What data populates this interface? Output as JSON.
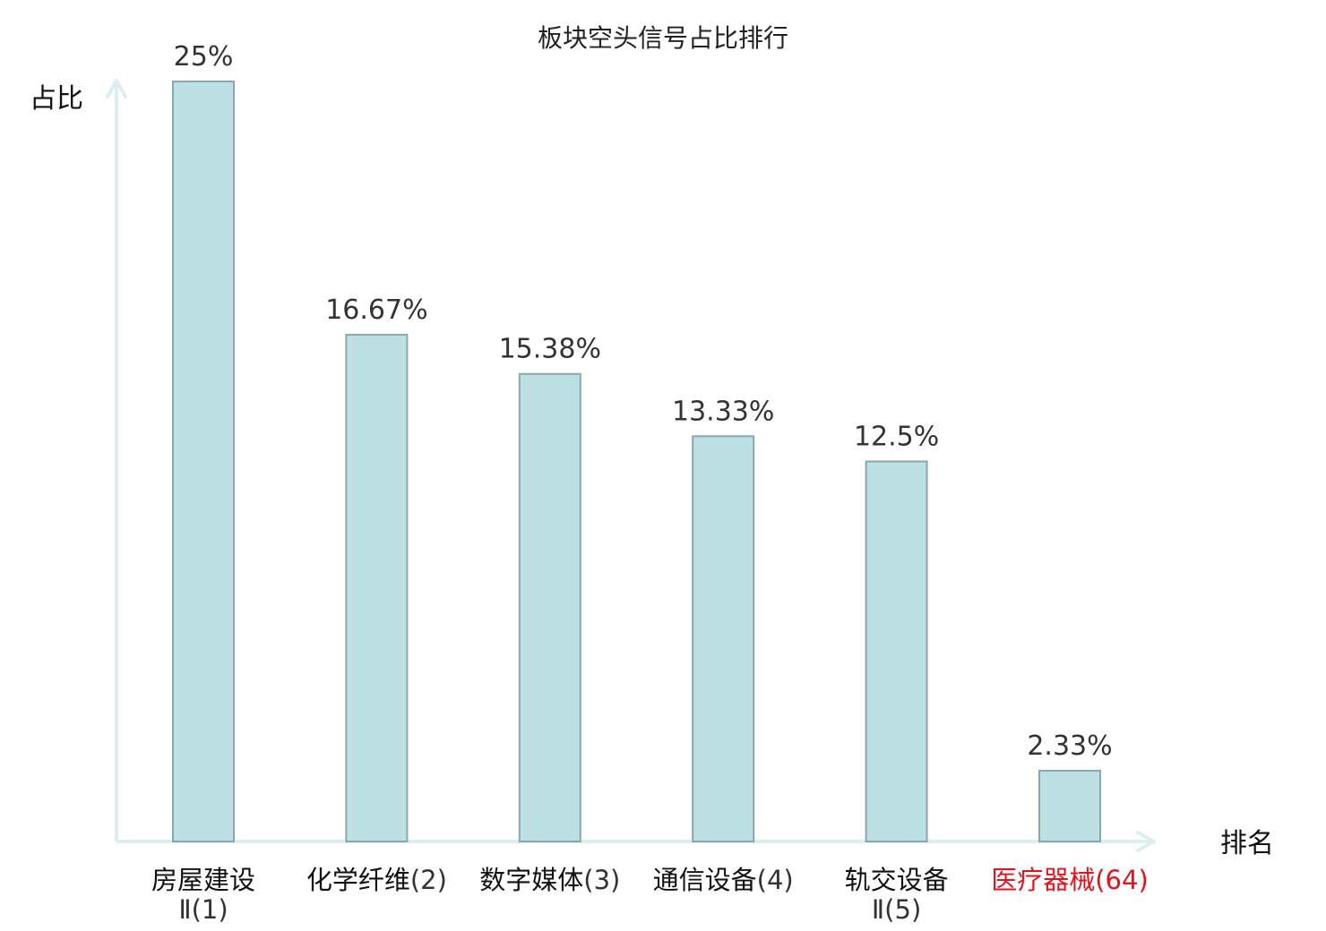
{
  "chart_data": {
    "type": "bar",
    "title": "板块空头信号占比排行",
    "ylabel": "占比",
    "xlabel": "排名",
    "ylim": [
      0,
      25
    ],
    "grid": false,
    "categories": [
      {
        "name": "房屋建设",
        "suffix": "Ⅱ(1)",
        "wrap": true,
        "highlight": false
      },
      {
        "name": "化学纤维",
        "suffix": "(2)",
        "wrap": false,
        "highlight": false
      },
      {
        "name": "数字媒体",
        "suffix": "(3)",
        "wrap": false,
        "highlight": false
      },
      {
        "name": "通信设备",
        "suffix": "(4)",
        "wrap": false,
        "highlight": false
      },
      {
        "name": "轨交设备",
        "suffix": "Ⅱ(5)",
        "wrap": true,
        "highlight": false
      },
      {
        "name": "医疗器械",
        "suffix": "(64)",
        "wrap": false,
        "highlight": true
      }
    ],
    "values": [
      25,
      16.67,
      15.38,
      13.33,
      12.5,
      2.33
    ],
    "value_labels": [
      "25%",
      "16.67%",
      "15.38%",
      "13.33%",
      "12.5%",
      "2.33%"
    ],
    "colors": {
      "bar_fill": "#bde0e2",
      "bar_stroke": "#8aa8ab",
      "axis": "#dcefee",
      "highlight": "#e0141e"
    }
  }
}
